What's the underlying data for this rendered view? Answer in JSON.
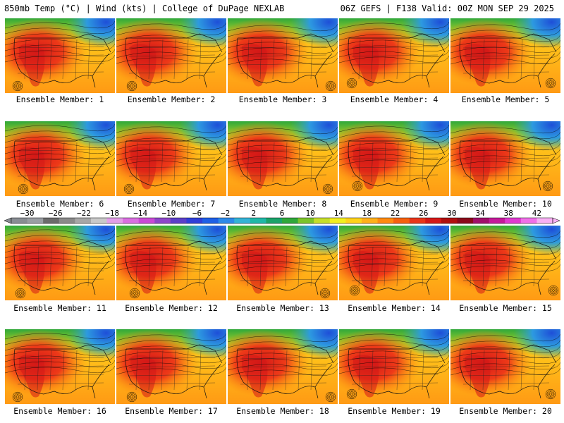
{
  "header": {
    "left": "850mb Temp (°C) | Wind (kts) | College of DuPage NEXLAB",
    "right": "06Z GEFS | F138 Valid: 00Z MON SEP 29 2025"
  },
  "panel_label_prefix": "Ensemble Member:",
  "members": [
    1,
    2,
    3,
    4,
    5,
    6,
    7,
    8,
    9,
    10,
    11,
    12,
    13,
    14,
    15,
    16,
    17,
    18,
    19,
    20
  ],
  "colorbar": {
    "ticks": [
      "-30",
      "-26",
      "-22",
      "-18",
      "-14",
      "-10",
      "-6",
      "-2",
      "2",
      "6",
      "10",
      "14",
      "18",
      "22",
      "26",
      "30",
      "34",
      "38",
      "42"
    ],
    "colors": [
      "#888d93",
      "#9a9ea3",
      "#6b6b6b",
      "#8a8a8a",
      "#a7a7a7",
      "#c9c9c9",
      "#e39fe8",
      "#d96fe0",
      "#c94ad6",
      "#8d47c9",
      "#5b3fc9",
      "#2f3fd8",
      "#1e5fe6",
      "#2d8ae8",
      "#34b3d6",
      "#1fb8a8",
      "#1aa36a",
      "#2fa83a",
      "#7cc42a",
      "#c6de2a",
      "#f2ef20",
      "#ffd21a",
      "#ffb01a",
      "#ff8a10",
      "#f5600f",
      "#e8361a",
      "#d41818",
      "#b01010",
      "#8a0a1a",
      "#a0106a",
      "#c41a9a",
      "#e03ad0",
      "#f070e8",
      "#f8b0f4"
    ]
  }
}
